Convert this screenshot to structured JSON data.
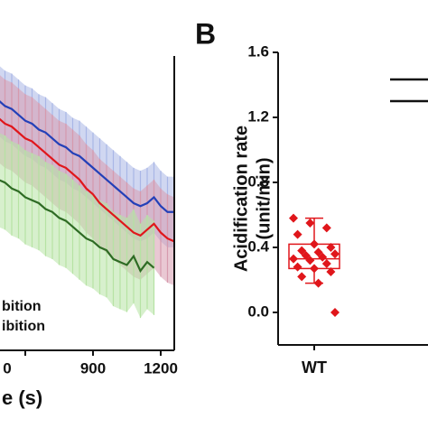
{
  "chart_data": [
    {
      "type": "line",
      "x": [
        480,
        510,
        540,
        570,
        600,
        630,
        660,
        690,
        720,
        750,
        780,
        810,
        840,
        870,
        900,
        930,
        960,
        990,
        1020,
        1050,
        1080,
        1110,
        1140,
        1170,
        1200,
        1230,
        1260
      ],
      "xlim": [
        480,
        1260
      ],
      "xticks": [
        {
          "value": 600,
          "label": "0"
        },
        900,
        1200
      ],
      "xlabel": "e (s)",
      "ylim": [
        0,
        1
      ],
      "series": [
        {
          "color": "#2340b8",
          "band_color": "#a9b6e6",
          "error": 0.12,
          "values": [
            0.85,
            0.83,
            0.82,
            0.8,
            0.78,
            0.77,
            0.75,
            0.74,
            0.72,
            0.7,
            0.69,
            0.67,
            0.66,
            0.64,
            0.62,
            0.6,
            0.58,
            0.56,
            0.54,
            0.52,
            0.5,
            0.49,
            0.5,
            0.52,
            0.49,
            0.47,
            0.47
          ]
        },
        {
          "color": "#e0161b",
          "band_color": "#d79aae",
          "error": 0.15,
          "values": [
            0.79,
            0.77,
            0.76,
            0.74,
            0.72,
            0.71,
            0.69,
            0.67,
            0.65,
            0.63,
            0.62,
            0.6,
            0.58,
            0.55,
            0.53,
            0.5,
            0.48,
            0.46,
            0.44,
            0.42,
            0.4,
            0.39,
            0.41,
            0.43,
            0.4,
            0.38,
            0.37
          ]
        },
        {
          "color": "#2e6b24",
          "band_color": "#b6e3a4",
          "error": 0.16,
          "values": [
            0.58,
            0.57,
            0.55,
            0.54,
            0.52,
            0.51,
            0.5,
            0.48,
            0.47,
            0.45,
            0.44,
            0.42,
            0.4,
            0.38,
            0.37,
            0.35,
            0.34,
            0.31,
            0.3,
            0.29,
            0.32,
            0.27,
            0.3,
            0.28,
            null,
            null,
            null
          ]
        }
      ],
      "legend": [
        "bition",
        "ibition"
      ]
    },
    {
      "type": "box",
      "panel_label": "B",
      "ylabel": [
        "Acidification rate",
        "(unit/min)"
      ],
      "categories": [
        "WT"
      ],
      "ylim": [
        -0.2,
        1.6
      ],
      "yticks": [
        {
          "value": 0,
          "label": "0.0"
        },
        0.4,
        0.8,
        1.2,
        1.6
      ],
      "color": "#e0161b",
      "boxes": [
        {
          "q1": 0.27,
          "median": 0.33,
          "q3": 0.42,
          "whisker_low": 0.18,
          "whisker_high": 0.58,
          "points": [
            0.58,
            0.55,
            0.52,
            0.48,
            0.42,
            0.4,
            0.38,
            0.37,
            0.36,
            0.35,
            0.34,
            0.33,
            0.32,
            0.3,
            0.28,
            0.27,
            0.25,
            0.22,
            0.18,
            0.0
          ]
        }
      ]
    }
  ]
}
